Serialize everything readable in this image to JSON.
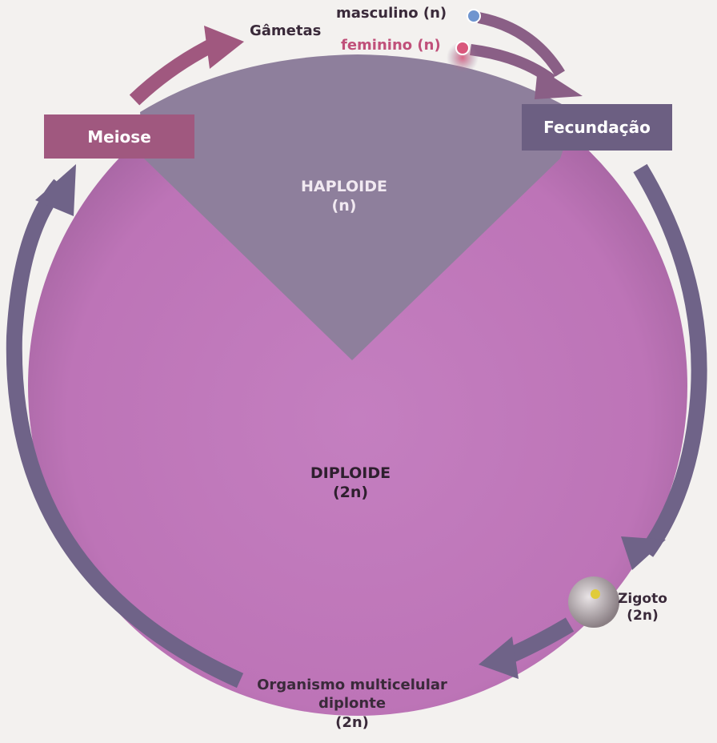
{
  "colors": {
    "circle_pink": "#c27bbd",
    "haploid_slate": "#8e7f9c",
    "arrow_slate": "#6f6388",
    "meiose_box": "#a0587f",
    "fecundacao_box": "#6c5f82",
    "male_dot": "#6f95cf",
    "female_dot": "#d9577c",
    "zigoto_dot": "#e0cb3a"
  },
  "labels": {
    "gametas": "Gâmetas",
    "masculino": "masculino (n)",
    "feminino": "feminino (n)",
    "meiose": "Meiose",
    "fecundacao": "Fecundação",
    "haploide_title": "HAPLOIDE",
    "haploide_ploidy": "(n)",
    "diploide_title": "DIPLOIDE",
    "diploide_ploidy": "(2n)",
    "zigoto_name": "Zigoto",
    "zigoto_ploidy": "(2n)",
    "organismo_line1": "Organismo multicelular",
    "organismo_line2": "diplonte",
    "organismo_ploidy": "(2n)"
  }
}
